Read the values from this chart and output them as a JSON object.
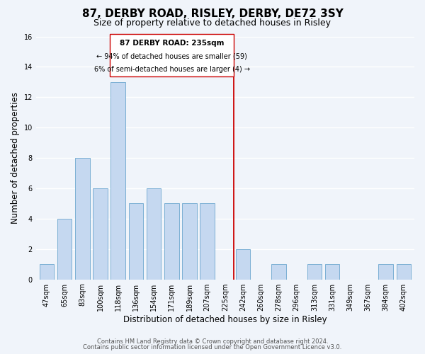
{
  "title": "87, DERBY ROAD, RISLEY, DERBY, DE72 3SY",
  "subtitle": "Size of property relative to detached houses in Risley",
  "xlabel": "Distribution of detached houses by size in Risley",
  "ylabel": "Number of detached properties",
  "bar_labels": [
    "47sqm",
    "65sqm",
    "83sqm",
    "100sqm",
    "118sqm",
    "136sqm",
    "154sqm",
    "171sqm",
    "189sqm",
    "207sqm",
    "225sqm",
    "242sqm",
    "260sqm",
    "278sqm",
    "296sqm",
    "313sqm",
    "331sqm",
    "349sqm",
    "367sqm",
    "384sqm",
    "402sqm"
  ],
  "bar_heights": [
    1,
    4,
    8,
    6,
    13,
    5,
    6,
    5,
    5,
    5,
    0,
    2,
    0,
    1,
    0,
    1,
    1,
    0,
    0,
    1,
    1
  ],
  "bar_color": "#c5d8f0",
  "bar_edge_color": "#7bafd4",
  "ylim": [
    0,
    16
  ],
  "yticks": [
    0,
    2,
    4,
    6,
    8,
    10,
    12,
    14,
    16
  ],
  "property_line_color": "#cc0000",
  "property_line_x": 10.5,
  "annotation_title": "87 DERBY ROAD: 235sqm",
  "annotation_line1": "← 94% of detached houses are smaller (59)",
  "annotation_line2": "6% of semi-detached houses are larger (4) →",
  "annotation_box_color": "#ffffff",
  "annotation_box_edge_color": "#cc0000",
  "footer_line1": "Contains HM Land Registry data © Crown copyright and database right 2024.",
  "footer_line2": "Contains public sector information licensed under the Open Government Licence v3.0.",
  "background_color": "#f0f4fa",
  "grid_color": "#ffffff",
  "title_fontsize": 11,
  "subtitle_fontsize": 9,
  "axis_label_fontsize": 8.5,
  "tick_fontsize": 7,
  "footer_fontsize": 6,
  "annotation_title_fontsize": 7.5,
  "annotation_text_fontsize": 7
}
